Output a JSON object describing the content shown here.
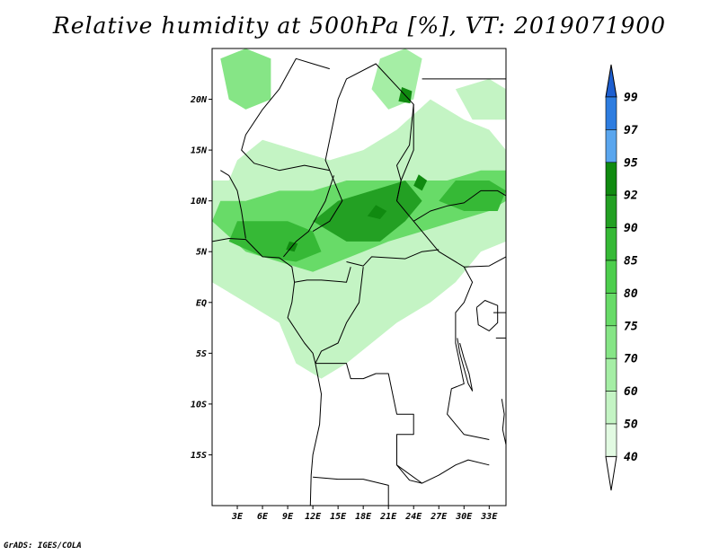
{
  "title": "Relative humidity at 500hPa [%], VT: 2019071900",
  "credit": "GrADS: IGES/COLA",
  "map": {
    "projection": "latlon",
    "lon_range": [
      0,
      35
    ],
    "lat_range": [
      -20,
      25
    ],
    "lat_ticks": [
      {
        "value": 20,
        "label": "20N"
      },
      {
        "value": 15,
        "label": "15N"
      },
      {
        "value": 10,
        "label": "10N"
      },
      {
        "value": 5,
        "label": "5N"
      },
      {
        "value": 0,
        "label": "EQ"
      },
      {
        "value": -5,
        "label": "5S"
      },
      {
        "value": -10,
        "label": "10S"
      },
      {
        "value": -15,
        "label": "15S"
      }
    ],
    "lon_ticks": [
      {
        "value": 3,
        "label": "3E"
      },
      {
        "value": 6,
        "label": "6E"
      },
      {
        "value": 9,
        "label": "9E"
      },
      {
        "value": 12,
        "label": "12E"
      },
      {
        "value": 15,
        "label": "15E"
      },
      {
        "value": 18,
        "label": "18E"
      },
      {
        "value": 21,
        "label": "21E"
      },
      {
        "value": 24,
        "label": "24E"
      },
      {
        "value": 27,
        "label": "27E"
      },
      {
        "value": 30,
        "label": "30E"
      },
      {
        "value": 33,
        "label": "33E"
      }
    ]
  },
  "colorbar": {
    "levels": [
      "99",
      "97",
      "95",
      "92",
      "90",
      "85",
      "80",
      "75",
      "70",
      "60",
      "50",
      "40"
    ],
    "colors": [
      "#1e5fd0",
      "#2e7de0",
      "#5aa6ee",
      "#108a10",
      "#23a023",
      "#36b936",
      "#4dce4d",
      "#68db68",
      "#86e586",
      "#a5eea5",
      "#c4f4c4",
      "#e2fae2",
      "#ffffff"
    ]
  },
  "humidity_regions": [
    {
      "name": "sahel-band",
      "level": "60",
      "poly": [
        [
          0,
          12
        ],
        [
          0,
          2
        ],
        [
          4,
          0
        ],
        [
          8,
          -2
        ],
        [
          10,
          -6
        ],
        [
          13,
          -7.5
        ],
        [
          16,
          -6
        ],
        [
          19,
          -4
        ],
        [
          22,
          -2
        ],
        [
          26,
          0
        ],
        [
          29,
          2
        ],
        [
          32,
          5
        ],
        [
          35,
          6
        ],
        [
          35,
          15
        ],
        [
          33,
          17
        ],
        [
          30,
          18
        ],
        [
          26,
          20
        ],
        [
          22,
          17
        ],
        [
          18,
          15
        ],
        [
          14,
          14
        ],
        [
          10,
          15
        ],
        [
          6,
          16
        ],
        [
          3,
          14
        ],
        [
          2,
          12
        ]
      ]
    },
    {
      "name": "north-patch-west",
      "level": "75",
      "poly": [
        [
          1,
          24
        ],
        [
          4,
          25
        ],
        [
          7,
          24
        ],
        [
          7,
          20
        ],
        [
          4,
          19
        ],
        [
          2,
          20
        ]
      ]
    },
    {
      "name": "north-patch-east",
      "level": "70",
      "poly": [
        [
          20,
          24
        ],
        [
          23,
          25
        ],
        [
          25,
          24
        ],
        [
          24,
          20
        ],
        [
          21,
          19
        ],
        [
          19,
          21
        ]
      ]
    },
    {
      "name": "northeast-patch",
      "level": "60",
      "poly": [
        [
          29,
          21
        ],
        [
          33,
          22
        ],
        [
          35,
          21
        ],
        [
          35,
          18
        ],
        [
          31,
          18
        ]
      ]
    },
    {
      "name": "central-band",
      "level": "80",
      "poly": [
        [
          0,
          8
        ],
        [
          4,
          5
        ],
        [
          8,
          4
        ],
        [
          12,
          3
        ],
        [
          15,
          4
        ],
        [
          18,
          5
        ],
        [
          21,
          6
        ],
        [
          25,
          7
        ],
        [
          29,
          8
        ],
        [
          33,
          9
        ],
        [
          35,
          10
        ],
        [
          35,
          13
        ],
        [
          32,
          13
        ],
        [
          28,
          12
        ],
        [
          24,
          12
        ],
        [
          20,
          12
        ],
        [
          16,
          12
        ],
        [
          12,
          11
        ],
        [
          8,
          11
        ],
        [
          4,
          10
        ],
        [
          1,
          10
        ]
      ]
    },
    {
      "name": "core-west",
      "level": "90",
      "poly": [
        [
          2,
          6
        ],
        [
          6,
          4.5
        ],
        [
          10,
          4
        ],
        [
          13,
          5
        ],
        [
          12,
          7
        ],
        [
          9,
          8
        ],
        [
          6,
          8
        ],
        [
          3,
          8
        ]
      ]
    },
    {
      "name": "core-center",
      "level": "92",
      "poly": [
        [
          12,
          8
        ],
        [
          16,
          6
        ],
        [
          20,
          6
        ],
        [
          23,
          8
        ],
        [
          25,
          10
        ],
        [
          23,
          12
        ],
        [
          19,
          11
        ],
        [
          15,
          10
        ]
      ]
    },
    {
      "name": "core-east",
      "level": "90",
      "poly": [
        [
          27,
          10
        ],
        [
          30,
          9
        ],
        [
          34,
          9
        ],
        [
          35,
          11
        ],
        [
          33,
          12
        ],
        [
          29,
          12
        ]
      ]
    },
    {
      "name": "peak-spot-1",
      "level": "95",
      "poly": [
        [
          18.5,
          8.5
        ],
        [
          20,
          8.2
        ],
        [
          20.8,
          9
        ],
        [
          19.5,
          9.6
        ]
      ]
    },
    {
      "name": "peak-spot-2",
      "level": "95",
      "poly": [
        [
          24,
          11.5
        ],
        [
          25,
          11
        ],
        [
          25.6,
          12
        ],
        [
          24.6,
          12.6
        ]
      ]
    },
    {
      "name": "peak-spot-3",
      "level": "95",
      "poly": [
        [
          22.2,
          19.8
        ],
        [
          23.6,
          19.6
        ],
        [
          23.8,
          20.8
        ],
        [
          22.6,
          21.2
        ]
      ]
    },
    {
      "name": "peak-spot-4",
      "level": "95",
      "poly": [
        [
          8.8,
          5.2
        ],
        [
          9.8,
          5
        ],
        [
          10.2,
          5.8
        ],
        [
          9.2,
          6
        ]
      ]
    }
  ],
  "boundaries": [
    {
      "name": "coast-west-africa",
      "line": [
        [
          0,
          6
        ],
        [
          2,
          6.3
        ],
        [
          4,
          6.2
        ],
        [
          6,
          4.5
        ],
        [
          8,
          4.4
        ],
        [
          9.5,
          3.5
        ],
        [
          9.8,
          2
        ],
        [
          9.5,
          0
        ],
        [
          9,
          -1.5
        ],
        [
          11,
          -4
        ],
        [
          12,
          -5
        ],
        [
          12.3,
          -6
        ],
        [
          13,
          -9
        ],
        [
          12.8,
          -12
        ],
        [
          12,
          -15
        ],
        [
          11.8,
          -17
        ],
        [
          11.7,
          -20
        ]
      ]
    },
    {
      "name": "lake-victoria",
      "line": [
        [
          31.5,
          -0.5
        ],
        [
          32.5,
          0.2
        ],
        [
          34,
          -0.3
        ],
        [
          34,
          -2
        ],
        [
          33,
          -2.8
        ],
        [
          31.7,
          -2.2
        ],
        [
          31.5,
          -0.5
        ]
      ]
    },
    {
      "name": "lake-tanganyika",
      "line": [
        [
          29.2,
          -3.5
        ],
        [
          29.5,
          -5
        ],
        [
          30,
          -6.5
        ],
        [
          30.5,
          -8
        ],
        [
          31,
          -8.7
        ],
        [
          30.6,
          -7
        ],
        [
          30,
          -5.5
        ],
        [
          29.5,
          -4
        ]
      ]
    },
    {
      "name": "lake-malawi",
      "line": [
        [
          34.5,
          -9.5
        ],
        [
          34.8,
          -11
        ],
        [
          34.6,
          -12.5
        ],
        [
          35,
          -14
        ]
      ]
    },
    {
      "name": "border-1",
      "line": [
        [
          12,
          7
        ],
        [
          14,
          8
        ],
        [
          15.5,
          10
        ],
        [
          14,
          13
        ],
        [
          13.5,
          14
        ],
        [
          15,
          20
        ],
        [
          16,
          22
        ],
        [
          19.5,
          23.5
        ],
        [
          24,
          19.5
        ],
        [
          24,
          15
        ],
        [
          22.5,
          12
        ],
        [
          22,
          10
        ],
        [
          24,
          8
        ],
        [
          27,
          5
        ],
        [
          30,
          3.5
        ],
        [
          31,
          2
        ],
        [
          30,
          0
        ],
        [
          29,
          -1
        ],
        [
          29,
          -4
        ],
        [
          30,
          -8
        ],
        [
          28.5,
          -8.5
        ],
        [
          28,
          -11
        ],
        [
          30,
          -13
        ],
        [
          33,
          -13.5
        ]
      ]
    },
    {
      "name": "border-2",
      "line": [
        [
          14,
          13
        ],
        [
          11,
          13.5
        ],
        [
          8,
          13
        ],
        [
          5,
          13.7
        ],
        [
          3.5,
          15
        ],
        [
          4,
          16.5
        ],
        [
          6,
          19
        ],
        [
          8,
          21
        ],
        [
          10,
          24
        ],
        [
          12,
          23.5
        ],
        [
          14,
          23
        ]
      ]
    },
    {
      "name": "border-3",
      "line": [
        [
          4,
          6.3
        ],
        [
          3.5,
          9
        ],
        [
          3,
          11
        ],
        [
          2,
          12.5
        ],
        [
          1,
          13
        ]
      ]
    },
    {
      "name": "border-4",
      "line": [
        [
          8.5,
          4.5
        ],
        [
          10,
          6
        ],
        [
          11.5,
          7
        ],
        [
          13.5,
          10
        ],
        [
          14.5,
          12.5
        ]
      ]
    },
    {
      "name": "border-5",
      "line": [
        [
          16,
          4
        ],
        [
          18,
          3.6
        ],
        [
          19,
          4.5
        ],
        [
          21,
          4.4
        ],
        [
          23,
          4.3
        ],
        [
          25,
          5
        ],
        [
          27,
          5.2
        ]
      ]
    },
    {
      "name": "border-6",
      "line": [
        [
          9.8,
          2
        ],
        [
          11.3,
          2.2
        ],
        [
          13,
          2.2
        ],
        [
          16,
          2
        ],
        [
          16.5,
          3.5
        ]
      ]
    },
    {
      "name": "border-7",
      "line": [
        [
          18,
          3.5
        ],
        [
          17.5,
          0
        ],
        [
          16,
          -2
        ],
        [
          15,
          -4
        ],
        [
          13,
          -4.8
        ],
        [
          12.3,
          -6
        ]
      ]
    },
    {
      "name": "border-8",
      "line": [
        [
          12.3,
          -6
        ],
        [
          16,
          -6
        ],
        [
          16.5,
          -7.5
        ],
        [
          18,
          -7.5
        ],
        [
          19.5,
          -7
        ],
        [
          21,
          -7
        ],
        [
          22,
          -11
        ],
        [
          24,
          -11
        ],
        [
          24,
          -13
        ],
        [
          22,
          -13
        ],
        [
          22,
          -16
        ],
        [
          23.5,
          -17.5
        ],
        [
          25,
          -17.8
        ]
      ]
    },
    {
      "name": "border-9",
      "line": [
        [
          12,
          -17.2
        ],
        [
          15,
          -17.4
        ],
        [
          18,
          -17.4
        ],
        [
          21,
          -18
        ],
        [
          21,
          -22
        ]
      ]
    },
    {
      "name": "border-10",
      "line": [
        [
          22,
          -16
        ],
        [
          25,
          -17.8
        ],
        [
          27,
          -17
        ],
        [
          29,
          -16
        ],
        [
          30.5,
          -15.5
        ],
        [
          33,
          -16
        ]
      ]
    },
    {
      "name": "border-11",
      "line": [
        [
          30,
          3.5
        ],
        [
          33,
          3.6
        ],
        [
          35,
          4.5
        ]
      ]
    },
    {
      "name": "border-12",
      "line": [
        [
          22,
          10
        ],
        [
          22.5,
          12
        ],
        [
          22,
          13.5
        ],
        [
          23.5,
          15.5
        ],
        [
          24,
          19.5
        ]
      ]
    },
    {
      "name": "border-13",
      "line": [
        [
          24,
          8
        ],
        [
          26,
          9
        ],
        [
          28,
          9.5
        ],
        [
          30,
          9.8
        ],
        [
          32,
          11
        ],
        [
          34,
          11
        ],
        [
          35,
          10.5
        ]
      ]
    },
    {
      "name": "border-14",
      "line": [
        [
          25,
          22
        ],
        [
          30,
          22
        ],
        [
          33,
          22
        ],
        [
          35,
          22
        ]
      ]
    },
    {
      "name": "border-15",
      "line": [
        [
          33.5,
          -1
        ],
        [
          35,
          -1
        ],
        [
          35,
          -3.5
        ],
        [
          33.8,
          -3.5
        ]
      ]
    }
  ]
}
